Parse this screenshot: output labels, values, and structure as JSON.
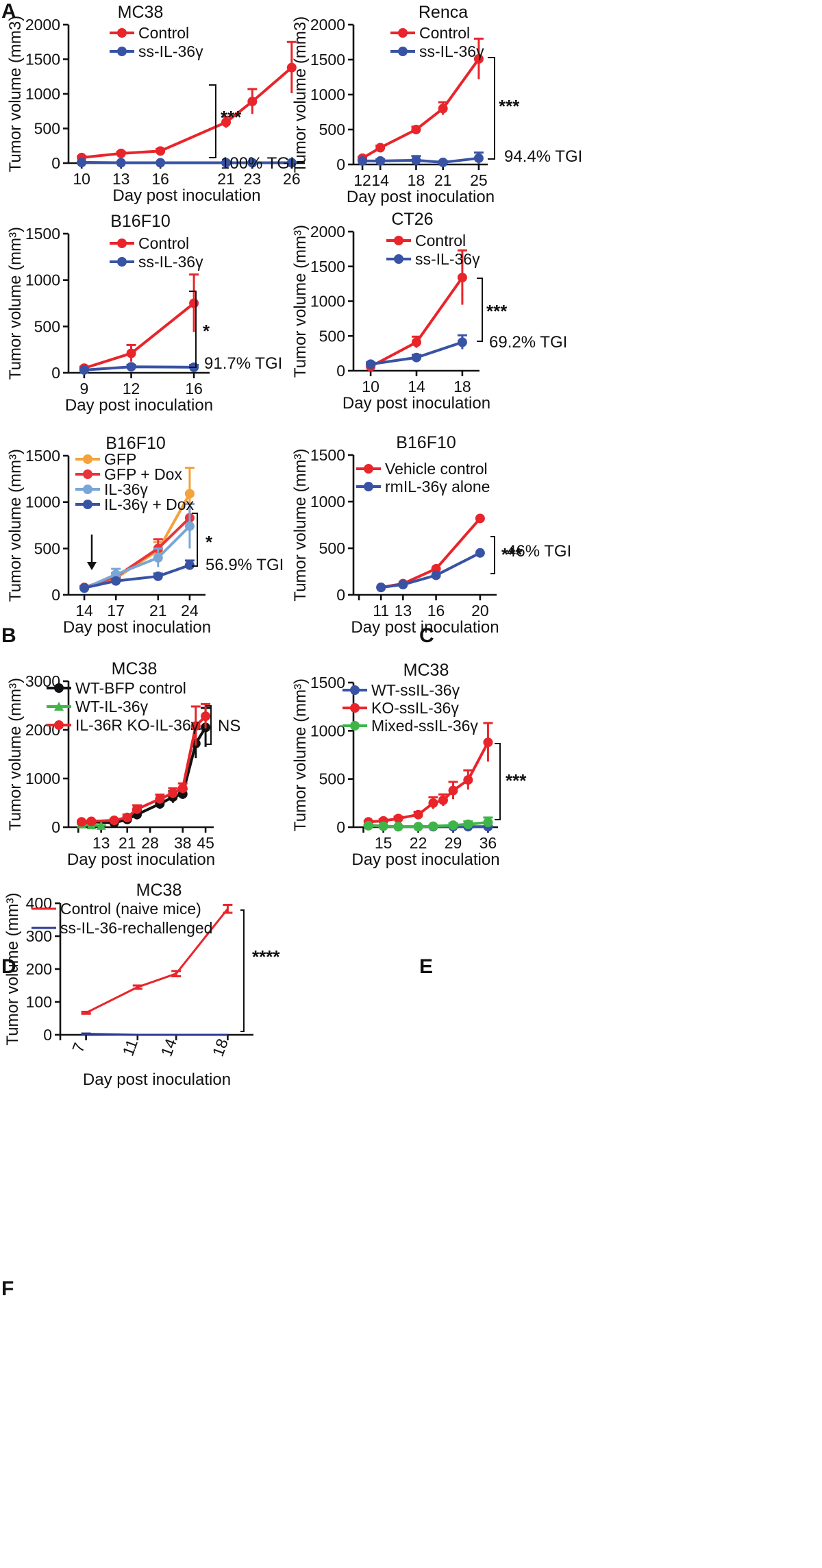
{
  "panel_letters": [
    "A",
    "B",
    "C",
    "D",
    "E",
    "F"
  ],
  "chart_data": [
    {
      "id": "A1",
      "type": "line",
      "title": "MC38",
      "xlabel": "Day post inoculation",
      "ylabel": "Tumor volume (mm3)",
      "x_ticks": [
        "10",
        "13",
        "16",
        "21",
        "23",
        "26"
      ],
      "y_ticks": [
        "0",
        "500",
        "1000",
        "1500",
        "2000"
      ],
      "ylim": [
        0,
        2000
      ],
      "series": [
        {
          "name": "Control",
          "color": "#e8252b",
          "marker": "circle",
          "values": [
            80,
            140,
            175,
            590,
            890,
            1380
          ],
          "errors": [
            20,
            25,
            30,
            80,
            180,
            370
          ]
        },
        {
          "name": "ss-IL-36γ",
          "color": "#3853a4",
          "marker": "circle",
          "values": [
            10,
            5,
            5,
            5,
            5,
            5
          ],
          "errors": [
            5,
            3,
            3,
            3,
            3,
            3
          ]
        }
      ],
      "significance": "***",
      "annotation": "100% TGI"
    },
    {
      "id": "A2",
      "type": "line",
      "title": "Renca",
      "xlabel": "Day post inoculation",
      "ylabel": "Tumor volume (mm3)",
      "x_ticks": [
        "12",
        "14",
        "18",
        "21",
        "25"
      ],
      "y_ticks": [
        "0",
        "500",
        "1000",
        "1500",
        "2000"
      ],
      "ylim": [
        0,
        2000
      ],
      "series": [
        {
          "name": "Control",
          "color": "#e8252b",
          "marker": "circle",
          "values": [
            90,
            240,
            500,
            800,
            1510
          ],
          "errors": [
            20,
            30,
            40,
            90,
            290
          ]
        },
        {
          "name": "ss-IL-36γ",
          "color": "#3853a4",
          "marker": "circle",
          "values": [
            50,
            50,
            60,
            30,
            90
          ],
          "errors": [
            15,
            25,
            60,
            20,
            80
          ]
        }
      ],
      "significance": "***",
      "annotation": "94.4% TGI"
    },
    {
      "id": "A3",
      "type": "line",
      "title": "B16F10",
      "xlabel": "Day post inoculation",
      "ylabel": "Tumor volume (mm³)",
      "x_ticks": [
        "9",
        "12",
        "16"
      ],
      "y_ticks": [
        "0",
        "500",
        "1000",
        "1500"
      ],
      "ylim": [
        0,
        1500
      ],
      "series": [
        {
          "name": "Control",
          "color": "#e8252b",
          "marker": "circle",
          "values": [
            50,
            210,
            750
          ],
          "errors": [
            15,
            90,
            310
          ]
        },
        {
          "name": "ss-IL-36γ",
          "color": "#3853a4",
          "marker": "circle",
          "values": [
            30,
            65,
            60
          ],
          "errors": [
            10,
            20,
            25
          ]
        }
      ],
      "significance": "*",
      "annotation": "91.7% TGI"
    },
    {
      "id": "A4",
      "type": "line",
      "title": "CT26",
      "xlabel": "Day post inoculation",
      "ylabel": "Tumor volume (mm³)",
      "x_ticks": [
        "10",
        "14",
        "18"
      ],
      "y_ticks": [
        "0",
        "500",
        "1000",
        "1500",
        "2000"
      ],
      "ylim": [
        0,
        2000
      ],
      "series": [
        {
          "name": "Control",
          "color": "#e8252b",
          "marker": "circle",
          "values": [
            60,
            410,
            1340
          ],
          "errors": [
            20,
            80,
            390
          ]
        },
        {
          "name": "ss-IL-36γ",
          "color": "#3853a4",
          "marker": "circle",
          "values": [
            95,
            190,
            410
          ],
          "errors": [
            25,
            40,
            100
          ]
        }
      ],
      "significance": "***",
      "annotation": "69.2% TGI"
    },
    {
      "id": "B",
      "type": "line",
      "title": "B16F10",
      "xlabel": "Day post inoculation",
      "ylabel": "Tumor volume (mm³)",
      "x_ticks": [
        "14",
        "17",
        "21",
        "24"
      ],
      "y_ticks": [
        "0",
        "500",
        "1000",
        "1500"
      ],
      "ylim": [
        0,
        1500
      ],
      "series": [
        {
          "name": "GFP",
          "color": "#f3a23c",
          "marker": "circle",
          "values": [
            75,
            180,
            480,
            1090
          ],
          "errors": [
            15,
            40,
            90,
            280
          ]
        },
        {
          "name": "GFP + Dox",
          "color": "#e8353b",
          "marker": "circle",
          "values": [
            80,
            195,
            500,
            830
          ],
          "errors": [
            15,
            40,
            100,
            150
          ]
        },
        {
          "name": "IL-36γ",
          "color": "#7aa6d6",
          "marker": "circle",
          "values": [
            70,
            220,
            400,
            740
          ],
          "errors": [
            15,
            60,
            100,
            240
          ]
        },
        {
          "name": "IL-36γ + Dox",
          "color": "#3853a4",
          "marker": "circle",
          "values": [
            75,
            150,
            200,
            320
          ],
          "errors": [
            10,
            20,
            30,
            50
          ]
        }
      ],
      "significance": "*",
      "annotation": "56.9% TGI"
    },
    {
      "id": "C",
      "type": "line",
      "title": "B16F10",
      "xlabel": "Day post inoculation",
      "ylabel": "Tumor volume (mm³)",
      "x_ticks": [
        "11",
        "13",
        "16",
        "20"
      ],
      "y_ticks": [
        "0",
        "500",
        "1000",
        "1500"
      ],
      "ylim": [
        0,
        1500
      ],
      "series": [
        {
          "name": "Vehicle control",
          "color": "#e8252b",
          "marker": "circle",
          "values": [
            80,
            120,
            280,
            820
          ],
          "errors": [
            0,
            0,
            0,
            0
          ]
        },
        {
          "name": "rmIL-36γ alone",
          "color": "#3853a4",
          "marker": "circle",
          "values": [
            80,
            110,
            210,
            450
          ],
          "errors": [
            0,
            0,
            0,
            0
          ]
        }
      ],
      "significance": "***",
      "annotation": "46% TGI"
    },
    {
      "id": "D",
      "type": "line",
      "title": "MC38",
      "xlabel": "Day post inoculation",
      "ylabel": "Tumor volume (mm³)",
      "x_ticks": [
        "13",
        "21",
        "28",
        "38",
        "45"
      ],
      "y_ticks": [
        "0",
        "1000",
        "2000",
        "3000"
      ],
      "ylim": [
        0,
        3000
      ],
      "series": [
        {
          "name": "WT-BFP control",
          "color": "#111111",
          "marker": "circle",
          "x": [
            7,
            10,
            17,
            21,
            24,
            31,
            35,
            38,
            42,
            45
          ],
          "values": [
            100,
            110,
            90,
            160,
            260,
            480,
            620,
            680,
            1720,
            2050
          ],
          "errors": [
            15,
            20,
            20,
            50,
            100,
            100,
            120,
            100,
            300,
            400
          ]
        },
        {
          "name": "WT-IL-36γ",
          "color": "#3fb549",
          "marker": "triangle",
          "x": [
            7,
            10,
            13
          ],
          "values": [
            60,
            40,
            30
          ],
          "errors": [
            10,
            10,
            10
          ]
        },
        {
          "name": "IL-36R KO-IL-36γ",
          "color": "#e8252b",
          "marker": "circle",
          "x": [
            7,
            10,
            17,
            21,
            24,
            31,
            35,
            38,
            42,
            45
          ],
          "values": [
            110,
            120,
            140,
            200,
            370,
            580,
            700,
            800,
            2080,
            2280
          ],
          "errors": [
            20,
            20,
            30,
            60,
            80,
            90,
            100,
            100,
            400,
            250
          ]
        }
      ],
      "significance": "NS",
      "annotation": ""
    },
    {
      "id": "E",
      "type": "line",
      "title": "MC38",
      "xlabel": "Day post inoculation",
      "ylabel": "Tumor volume (mm³)",
      "x_ticks": [
        "15",
        "22",
        "29",
        "36"
      ],
      "y_ticks": [
        "0",
        "500",
        "1000",
        "1500"
      ],
      "ylim": [
        0,
        1500
      ],
      "series": [
        {
          "name": "WT-ssIL-36γ",
          "color": "#3853a4",
          "marker": "circle",
          "x": [
            12,
            15,
            18,
            22,
            25,
            29,
            32,
            36
          ],
          "values": [
            20,
            10,
            5,
            5,
            5,
            5,
            5,
            5
          ],
          "errors": [
            5,
            5,
            3,
            3,
            3,
            3,
            3,
            3
          ]
        },
        {
          "name": "KO-ssIL-36γ",
          "color": "#e8252b",
          "marker": "circle",
          "x": [
            12,
            15,
            18,
            22,
            25,
            27,
            29,
            32,
            36
          ],
          "values": [
            55,
            65,
            90,
            130,
            250,
            280,
            380,
            490,
            880
          ],
          "errors": [
            10,
            15,
            20,
            30,
            60,
            60,
            90,
            100,
            200
          ]
        },
        {
          "name": "Mixed-ssIL-36γ",
          "color": "#3fb549",
          "marker": "circle",
          "x": [
            12,
            15,
            18,
            22,
            25,
            29,
            32,
            36
          ],
          "values": [
            15,
            10,
            5,
            5,
            10,
            20,
            30,
            50
          ],
          "errors": [
            5,
            5,
            3,
            3,
            10,
            20,
            30,
            50
          ]
        }
      ],
      "significance": "***",
      "annotation": ""
    },
    {
      "id": "F",
      "type": "line",
      "title": "MC38",
      "xlabel": "Day post inoculation",
      "ylabel": "Tumor volume (mm³)",
      "x_ticks": [
        "7",
        "11",
        "14",
        "18"
      ],
      "y_ticks": [
        "0",
        "100",
        "200",
        "300",
        "400"
      ],
      "ylim": [
        0,
        400
      ],
      "series": [
        {
          "name": "Control (naive mice)",
          "color": "#e8252b",
          "marker": "none",
          "values": [
            67,
            145,
            186,
            383
          ],
          "errors": [
            3,
            5,
            8,
            12
          ]
        },
        {
          "name": "ss-IL-36-rechallenged",
          "color": "#2b3990",
          "marker": "none",
          "values": [
            3,
            0,
            0,
            0
          ],
          "errors": [
            1,
            0,
            0,
            0
          ]
        }
      ],
      "significance": "****",
      "annotation": ""
    }
  ]
}
